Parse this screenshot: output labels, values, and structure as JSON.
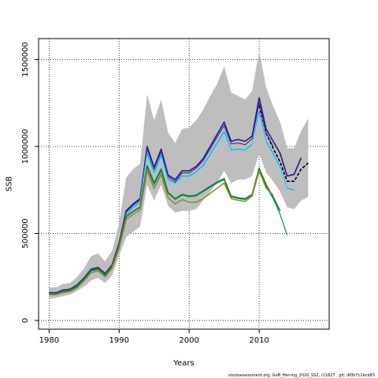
{
  "chart_data": {
    "type": "line",
    "title": "",
    "xlabel": "Years",
    "ylabel": "SSB",
    "xlim": [
      1978.5,
      2020
    ],
    "ylim": [
      -50000,
      1620000
    ],
    "x_ticks": [
      1980,
      1990,
      2000,
      2010
    ],
    "y_ticks": [
      0,
      500000,
      1000000,
      1500000
    ],
    "grid": "dotted at ticks",
    "legend": "none",
    "footnote": "stockassessment.org, GoB_Herring_2020_SS2, r11827 , git: df0b7c1bcb83",
    "band": {
      "color": "#bebebe",
      "x": [
        1980,
        1981,
        1982,
        1983,
        1984,
        1985,
        1986,
        1987,
        1988,
        1989,
        1990,
        1991,
        1992,
        1993,
        1994,
        1995,
        1996,
        1997,
        1998,
        1999,
        2000,
        2001,
        2002,
        2003,
        2004,
        2005,
        2006,
        2007,
        2008,
        2009,
        2010,
        2011,
        2012,
        2013,
        2014,
        2015,
        2016,
        2017
      ],
      "upper": [
        190000,
        190000,
        210000,
        215000,
        250000,
        300000,
        370000,
        385000,
        340000,
        400000,
        560000,
        820000,
        870000,
        900000,
        1300000,
        1150000,
        1270000,
        1080000,
        1020000,
        1100000,
        1110000,
        1150000,
        1210000,
        1290000,
        1360000,
        1460000,
        1310000,
        1290000,
        1270000,
        1320000,
        1550000,
        1340000,
        1230000,
        1140000,
        990000,
        990000,
        1090000,
        1160000
      ],
      "lower": [
        125000,
        130000,
        140000,
        148000,
        170000,
        195000,
        230000,
        245000,
        215000,
        260000,
        370000,
        480000,
        510000,
        540000,
        780000,
        690000,
        780000,
        660000,
        620000,
        630000,
        630000,
        640000,
        690000,
        740000,
        790000,
        860000,
        790000,
        810000,
        810000,
        830000,
        960000,
        850000,
        800000,
        740000,
        650000,
        640000,
        690000,
        710000
      ]
    },
    "series": [
      {
        "color": "#000000",
        "dashed": true,
        "width": 1.6,
        "x": [
          2010,
          2011,
          2012,
          2013,
          2014,
          2015,
          2016,
          2017
        ],
        "values": [
          1235000,
          1075000,
          990000,
          910000,
          800000,
          800000,
          870000,
          905000
        ]
      },
      {
        "color": "#1e1e8a",
        "width": 1.6,
        "x": [
          1980,
          1981,
          1982,
          1983,
          1984,
          1985,
          1986,
          1987,
          1988,
          1989,
          1990,
          1991,
          1992,
          1993,
          1994,
          1995,
          1996,
          1997,
          1998,
          1999,
          2000,
          2001,
          2002,
          2003,
          2004,
          2005,
          2006,
          2007,
          2008,
          2009,
          2010,
          2011,
          2012,
          2013,
          2014,
          2015,
          2016
        ],
        "values": [
          160000,
          160000,
          175000,
          180000,
          205000,
          245000,
          295000,
          305000,
          270000,
          320000,
          445000,
          630000,
          670000,
          700000,
          1000000,
          880000,
          985000,
          835000,
          810000,
          860000,
          860000,
          885000,
          930000,
          1000000,
          1070000,
          1140000,
          1030000,
          1040000,
          1030000,
          1060000,
          1280000,
          1100000,
          1030000,
          960000,
          830000,
          840000,
          935000
        ]
      },
      {
        "color": "#4d2a9a",
        "width": 1.2,
        "x": [
          1980,
          1981,
          1982,
          1983,
          1984,
          1985,
          1986,
          1987,
          1988,
          1989,
          1990,
          1991,
          1992,
          1993,
          1994,
          1995,
          1996,
          1997,
          1998,
          1999,
          2000,
          2001,
          2002,
          2003,
          2004,
          2005,
          2006,
          2007,
          2008,
          2009,
          2010,
          2011,
          2012
        ],
        "values": [
          158000,
          158000,
          172000,
          178000,
          202000,
          242000,
          292000,
          302000,
          268000,
          318000,
          440000,
          622000,
          662000,
          692000,
          985000,
          870000,
          970000,
          825000,
          798000,
          848000,
          848000,
          875000,
          918000,
          985000,
          1055000,
          1120000,
          1015000,
          1020000,
          1010000,
          1045000,
          1250000,
          1080000,
          1000000
        ]
      },
      {
        "color": "#00b3d9",
        "width": 1.2,
        "x": [
          1980,
          1981,
          1982,
          1983,
          1984,
          1985,
          1986,
          1987,
          1988,
          1989,
          1990,
          1991,
          1992,
          1993,
          1994,
          1995,
          1996,
          1997,
          1998,
          1999,
          2000,
          2001,
          2002,
          2003,
          2004,
          2005,
          2006,
          2007,
          2008,
          2009,
          2010,
          2011,
          2012,
          2013,
          2014,
          2015
        ],
        "values": [
          155000,
          155000,
          168000,
          175000,
          198000,
          238000,
          288000,
          298000,
          262000,
          312000,
          430000,
          605000,
          648000,
          680000,
          960000,
          850000,
          950000,
          810000,
          790000,
          830000,
          830000,
          855000,
          890000,
          955000,
          1020000,
          1085000,
          980000,
          985000,
          980000,
          1010000,
          1200000,
          1030000,
          960000,
          880000,
          760000,
          750000
        ]
      },
      {
        "color": "#87d0f0",
        "width": 1.2,
        "x": [
          1980,
          1981,
          1982,
          1983,
          1984,
          1985,
          1986,
          1987,
          1988,
          1989,
          1990,
          1991,
          1992,
          1993,
          1994,
          1995,
          1996,
          1997,
          1998,
          1999,
          2000,
          2001,
          2002,
          2003,
          2004,
          2005,
          2006,
          2007,
          2008,
          2009,
          2010,
          2011,
          2012,
          2013,
          2014
        ],
        "values": [
          150000,
          150000,
          162000,
          168000,
          192000,
          232000,
          280000,
          290000,
          256000,
          305000,
          420000,
          595000,
          640000,
          670000,
          940000,
          835000,
          935000,
          795000,
          780000,
          815000,
          815000,
          840000,
          875000,
          940000,
          1005000,
          1070000,
          970000,
          975000,
          975000,
          1000000,
          1180000,
          1015000,
          950000,
          870000,
          750000
        ]
      },
      {
        "color": "#20a090",
        "width": 1.4,
        "x": [
          1980,
          1981,
          1982,
          1983,
          1984,
          1985,
          1986,
          1987,
          1988,
          1989,
          1990,
          1991,
          1992,
          1993,
          1994,
          1995,
          1996,
          1997,
          1998,
          1999,
          2000,
          2001,
          2002,
          2003,
          2004,
          2005,
          2006,
          2007,
          2008,
          2009,
          2010,
          2011,
          2012,
          2013,
          2014
        ],
        "values": [
          152000,
          152000,
          165000,
          172000,
          195000,
          235000,
          285000,
          295000,
          260000,
          310000,
          428000,
          595000,
          625000,
          650000,
          880000,
          780000,
          860000,
          730000,
          695000,
          720000,
          710000,
          715000,
          740000,
          765000,
          790000,
          810000,
          710000,
          700000,
          695000,
          720000,
          870000,
          770000,
          700000,
          610000,
          490000
        ]
      },
      {
        "color": "#1a7a30",
        "width": 1.6,
        "x": [
          1980,
          1981,
          1982,
          1983,
          1984,
          1985,
          1986,
          1987,
          1988,
          1989,
          1990,
          1991,
          1992,
          1993,
          1994,
          1995,
          1996,
          1997,
          1998,
          1999,
          2000,
          2001,
          2002,
          2003,
          2004,
          2005,
          2006,
          2007,
          2008,
          2009,
          2010,
          2011,
          2012,
          2013
        ],
        "values": [
          153000,
          153000,
          166000,
          173000,
          196000,
          236000,
          286000,
          296000,
          261000,
          311000,
          429000,
          596000,
          627000,
          652000,
          890000,
          790000,
          870000,
          735000,
          700000,
          725000,
          715000,
          720000,
          745000,
          770000,
          795000,
          815000,
          715000,
          705000,
          700000,
          725000,
          875000,
          780000,
          710000,
          630000
        ]
      },
      {
        "color": "#8e8e2a",
        "width": 1.6,
        "x": [
          1980,
          1981,
          1982,
          1983,
          1984,
          1985,
          1986,
          1987,
          1988,
          1989,
          1990,
          1991,
          1992,
          1993,
          1994,
          1995,
          1996,
          1997,
          1998,
          1999,
          2000,
          2001,
          2002,
          2003,
          2004,
          2005,
          2006,
          2007,
          2008,
          2009,
          2010,
          2011,
          2012
        ],
        "values": [
          148000,
          148000,
          160000,
          166000,
          188000,
          228000,
          275000,
          286000,
          250000,
          300000,
          415000,
          580000,
          610000,
          635000,
          860000,
          760000,
          840000,
          705000,
          670000,
          695000,
          680000,
          680000,
          700000,
          730000,
          760000,
          790000,
          700000,
          690000,
          685000,
          715000,
          860000,
          760000,
          720000
        ]
      }
    ]
  }
}
